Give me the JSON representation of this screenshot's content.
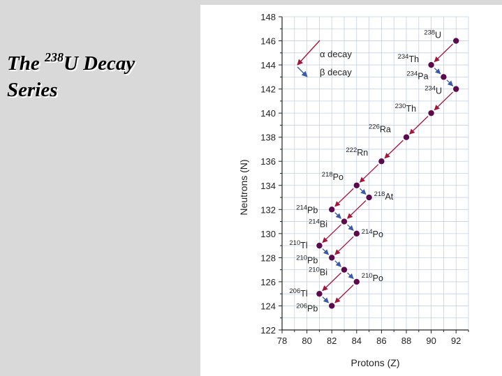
{
  "slide": {
    "title_pre": "The ",
    "title_sup": "238",
    "title_post": "U Decay",
    "title_line2": "Series"
  },
  "chart_data": {
    "type": "scatter",
    "xlabel": "Protons (Z)",
    "ylabel": "Neutrons (N)",
    "xlim": [
      78,
      93
    ],
    "ylim": [
      122,
      148
    ],
    "xticks": [
      78,
      80,
      82,
      84,
      86,
      88,
      90,
      92
    ],
    "yticks": [
      122,
      124,
      126,
      128,
      130,
      132,
      134,
      136,
      138,
      140,
      142,
      144,
      146,
      148
    ],
    "grid": true,
    "legend": {
      "placement": "top-left",
      "entries": [
        {
          "label": "α decay",
          "kind": "alpha"
        },
        {
          "label": "β decay",
          "kind": "beta"
        }
      ]
    },
    "colors": {
      "alpha": "#a3163a",
      "beta": "#3a5aa8",
      "point": "#5c0a4e",
      "grid": "#c4cfe4",
      "axis": "#222222"
    },
    "nuclides": [
      {
        "id": "U238",
        "mass": "238",
        "sym": "U",
        "z": 92,
        "n": 146
      },
      {
        "id": "Th234",
        "mass": "234",
        "sym": "Th",
        "z": 90,
        "n": 144
      },
      {
        "id": "Pa234",
        "mass": "234",
        "sym": "Pa",
        "z": 91,
        "n": 143
      },
      {
        "id": "U234",
        "mass": "234",
        "sym": "U",
        "z": 92,
        "n": 142
      },
      {
        "id": "Th230",
        "mass": "230",
        "sym": "Th",
        "z": 90,
        "n": 140
      },
      {
        "id": "Ra226",
        "mass": "226",
        "sym": "Ra",
        "z": 88,
        "n": 138
      },
      {
        "id": "Rn222",
        "mass": "222",
        "sym": "Rn",
        "z": 86,
        "n": 136
      },
      {
        "id": "Po218",
        "mass": "218",
        "sym": "Po",
        "z": 84,
        "n": 134
      },
      {
        "id": "At218",
        "mass": "218",
        "sym": "At",
        "z": 85,
        "n": 133
      },
      {
        "id": "Pb214",
        "mass": "214",
        "sym": "Pb",
        "z": 82,
        "n": 132
      },
      {
        "id": "Bi214",
        "mass": "214",
        "sym": "Bi",
        "z": 83,
        "n": 131
      },
      {
        "id": "Po214",
        "mass": "214",
        "sym": "Po",
        "z": 84,
        "n": 130
      },
      {
        "id": "Tl210",
        "mass": "210",
        "sym": "Tl",
        "z": 81,
        "n": 129
      },
      {
        "id": "Pb210",
        "mass": "210",
        "sym": "Pb",
        "z": 82,
        "n": 128
      },
      {
        "id": "Bi210",
        "mass": "210",
        "sym": "Bi",
        "z": 83,
        "n": 127
      },
      {
        "id": "Po210",
        "mass": "210",
        "sym": "Po",
        "z": 84,
        "n": 126
      },
      {
        "id": "Tl206",
        "mass": "206",
        "sym": "Tl",
        "z": 81,
        "n": 125
      },
      {
        "id": "Pb206",
        "mass": "206",
        "sym": "Pb",
        "z": 82,
        "n": 124
      }
    ],
    "decays": [
      {
        "from": "U238",
        "to": "Th234",
        "type": "alpha"
      },
      {
        "from": "Th234",
        "to": "Pa234",
        "type": "beta"
      },
      {
        "from": "Pa234",
        "to": "U234",
        "type": "beta"
      },
      {
        "from": "U234",
        "to": "Th230",
        "type": "alpha"
      },
      {
        "from": "Th230",
        "to": "Ra226",
        "type": "alpha"
      },
      {
        "from": "Ra226",
        "to": "Rn222",
        "type": "alpha"
      },
      {
        "from": "Rn222",
        "to": "Po218",
        "type": "alpha"
      },
      {
        "from": "Po218",
        "to": "Pb214",
        "type": "alpha"
      },
      {
        "from": "Po218",
        "to": "At218",
        "type": "beta"
      },
      {
        "from": "At218",
        "to": "Bi214",
        "type": "alpha"
      },
      {
        "from": "Pb214",
        "to": "Bi214",
        "type": "beta"
      },
      {
        "from": "Bi214",
        "to": "Po214",
        "type": "beta"
      },
      {
        "from": "Bi214",
        "to": "Tl210",
        "type": "alpha"
      },
      {
        "from": "Po214",
        "to": "Pb210",
        "type": "alpha"
      },
      {
        "from": "Tl210",
        "to": "Pb210",
        "type": "beta"
      },
      {
        "from": "Pb210",
        "to": "Bi210",
        "type": "beta"
      },
      {
        "from": "Bi210",
        "to": "Po210",
        "type": "beta"
      },
      {
        "from": "Bi210",
        "to": "Tl206",
        "type": "alpha"
      },
      {
        "from": "Po210",
        "to": "Pb206",
        "type": "alpha"
      },
      {
        "from": "Tl206",
        "to": "Pb206",
        "type": "beta"
      }
    ]
  }
}
